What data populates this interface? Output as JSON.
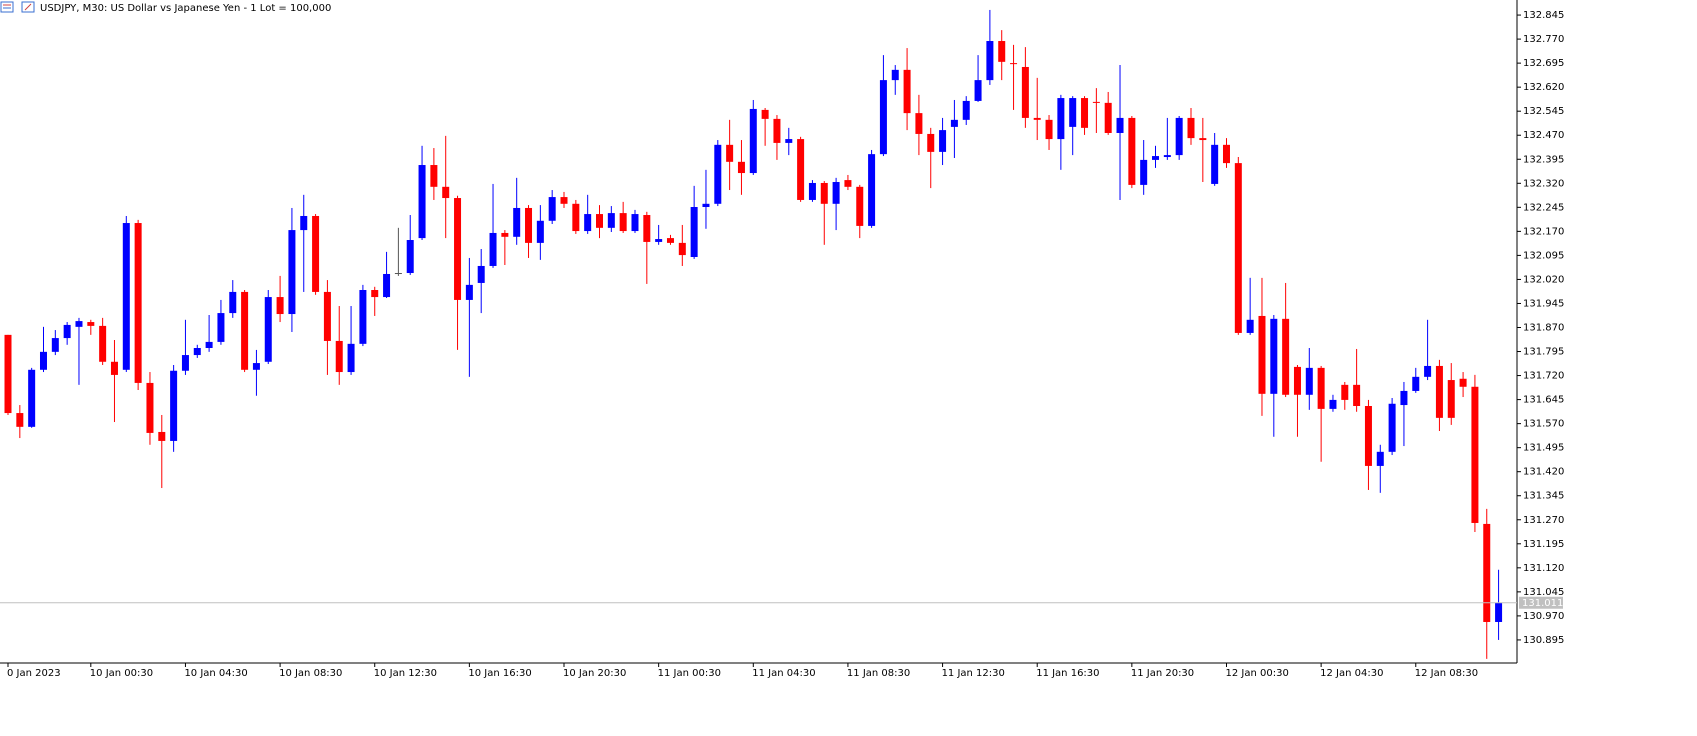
{
  "chart_data": {
    "type": "candlestick",
    "title": "USDJPY, M30:  US Dollar vs Japanese Yen - 1 Lot = 100,000",
    "categories": [
      "0 Jan 2023",
      null,
      null,
      null,
      null,
      null,
      null,
      "10 Jan 00:30",
      null,
      null,
      null,
      null,
      null,
      null,
      null,
      "10 Jan 04:30",
      null,
      null,
      null,
      null,
      null,
      null,
      null,
      "10 Jan 08:30",
      null,
      null,
      null,
      null,
      null,
      null,
      null,
      "10 Jan 12:30",
      null,
      null,
      null,
      null,
      null,
      null,
      null,
      "10 Jan 16:30",
      null,
      null,
      null,
      null,
      null,
      null,
      null,
      "10 Jan 20:30",
      null,
      null,
      null,
      null,
      null,
      null,
      null,
      "11 Jan 00:30",
      null,
      null,
      null,
      null,
      null,
      null,
      null,
      "11 Jan 04:30",
      null,
      null,
      null,
      null,
      null,
      null,
      null,
      "11 Jan 08:30",
      null,
      null,
      null,
      null,
      null,
      null,
      null,
      "11 Jan 12:30",
      null,
      null,
      null,
      null,
      null,
      null,
      null,
      "11 Jan 16:30",
      null,
      null,
      null,
      null,
      null,
      null,
      null,
      "11 Jan 20:30",
      null,
      null,
      null,
      null,
      null,
      null,
      null,
      "12 Jan 00:30",
      null,
      null,
      null,
      null,
      null,
      null,
      null,
      "12 Jan 04:30",
      null,
      null,
      null,
      null,
      null,
      null,
      null,
      "12 Jan 08:30",
      null,
      null,
      null,
      null,
      null,
      null,
      null
    ],
    "open": [
      131.847,
      131.603,
      131.56,
      131.738,
      131.794,
      131.837,
      131.872,
      131.887,
      131.875,
      131.763,
      131.738,
      132.196,
      131.697,
      131.544,
      131.516,
      131.735,
      131.784,
      131.806,
      131.825,
      131.915,
      131.981,
      131.738,
      131.763,
      131.965,
      131.912,
      132.174,
      132.218,
      131.981,
      131.828,
      131.731,
      131.819,
      131.987,
      131.965,
      132.04,
      132.04,
      132.149,
      132.377,
      132.309,
      132.274,
      131.956,
      132.009,
      132.062,
      132.165,
      132.153,
      132.243,
      132.134,
      132.203,
      132.277,
      132.256,
      132.171,
      132.224,
      132.181,
      132.227,
      132.171,
      132.221,
      132.137,
      132.149,
      132.134,
      132.09,
      132.246,
      132.256,
      132.44,
      132.387,
      132.352,
      132.549,
      132.521,
      132.446,
      132.458,
      132.268,
      132.321,
      132.256,
      132.33,
      132.309,
      132.187,
      132.411,
      132.642,
      132.674,
      132.539,
      132.474,
      132.418,
      132.496,
      132.518,
      132.577,
      132.642,
      132.764,
      132.695,
      132.683,
      132.524,
      132.518,
      132.458,
      132.496,
      132.586,
      132.574,
      132.571,
      132.477,
      132.524,
      132.315,
      132.393,
      132.402,
      132.408,
      132.524,
      132.461,
      132.318,
      132.44,
      132.383,
      131.853,
      131.906,
      131.663,
      131.897,
      131.747,
      131.66,
      131.744,
      131.616,
      131.691,
      131.691,
      131.625,
      131.438,
      131.482,
      131.628,
      131.672,
      131.716,
      131.75,
      131.706,
      131.71,
      131.685,
      131.257,
      130.951
    ],
    "high": [
      131.847,
      131.628,
      131.744,
      131.872,
      131.862,
      131.887,
      131.9,
      131.894,
      131.9,
      131.831,
      132.218,
      132.206,
      131.731,
      131.597,
      131.753,
      131.894,
      131.816,
      131.909,
      131.956,
      132.018,
      131.987,
      131.8,
      131.987,
      132.031,
      132.243,
      132.284,
      132.224,
      132.018,
      131.937,
      131.937,
      132.003,
      131.997,
      132.106,
      132.181,
      132.221,
      132.437,
      132.43,
      132.468,
      132.281,
      132.087,
      132.115,
      132.318,
      132.174,
      132.337,
      132.252,
      132.252,
      132.299,
      132.293,
      132.268,
      132.284,
      132.252,
      132.249,
      132.262,
      132.237,
      132.231,
      132.19,
      132.159,
      132.19,
      132.312,
      132.362,
      132.455,
      132.518,
      132.455,
      132.58,
      132.555,
      132.533,
      132.493,
      132.465,
      132.33,
      132.327,
      132.337,
      132.346,
      132.315,
      132.424,
      132.72,
      132.689,
      132.742,
      132.596,
      132.493,
      132.524,
      132.58,
      132.592,
      132.72,
      132.861,
      132.798,
      132.752,
      132.745,
      132.649,
      132.533,
      132.596,
      132.592,
      132.592,
      132.617,
      132.605,
      132.689,
      132.53,
      132.455,
      132.437,
      132.524,
      132.53,
      132.555,
      132.524,
      132.477,
      132.461,
      132.402,
      132.025,
      132.025,
      131.909,
      132.009,
      131.753,
      131.806,
      131.75,
      131.66,
      131.7,
      131.803,
      131.644,
      131.504,
      131.65,
      131.7,
      131.744,
      131.894,
      131.769,
      131.759,
      131.731,
      131.722,
      131.304,
      131.114
    ],
    "low": [
      131.597,
      131.525,
      131.557,
      131.731,
      131.784,
      131.816,
      131.691,
      131.847,
      131.753,
      131.575,
      131.731,
      131.675,
      131.504,
      131.369,
      131.482,
      131.722,
      131.775,
      131.794,
      131.816,
      131.9,
      131.731,
      131.657,
      131.756,
      131.887,
      131.856,
      131.981,
      131.972,
      131.722,
      131.691,
      131.722,
      131.812,
      131.906,
      131.962,
      132.031,
      132.034,
      132.143,
      132.268,
      132.149,
      131.8,
      131.716,
      131.915,
      132.056,
      132.065,
      132.128,
      132.087,
      132.081,
      132.193,
      132.243,
      132.162,
      132.162,
      132.149,
      132.168,
      132.165,
      132.165,
      132.006,
      132.128,
      132.128,
      132.062,
      132.084,
      132.178,
      132.249,
      132.299,
      132.284,
      132.346,
      132.437,
      132.393,
      132.408,
      132.262,
      132.262,
      132.128,
      132.174,
      132.299,
      132.149,
      132.181,
      132.405,
      132.596,
      132.486,
      132.408,
      132.305,
      132.377,
      132.399,
      132.502,
      132.574,
      132.627,
      132.642,
      132.549,
      132.493,
      132.455,
      132.424,
      132.362,
      132.408,
      132.471,
      132.477,
      132.471,
      132.268,
      132.305,
      132.284,
      132.368,
      132.393,
      132.393,
      132.44,
      132.324,
      132.312,
      132.368,
      131.847,
      131.847,
      131.594,
      131.529,
      131.653,
      131.529,
      131.613,
      131.451,
      131.607,
      131.613,
      131.607,
      131.363,
      131.354,
      131.472,
      131.5,
      131.666,
      131.706,
      131.547,
      131.566,
      131.653,
      131.232,
      130.836,
      130.895
    ],
    "close": [
      131.603,
      131.56,
      131.738,
      131.794,
      131.837,
      131.878,
      131.89,
      131.875,
      131.763,
      131.722,
      132.196,
      131.697,
      131.541,
      131.516,
      131.735,
      131.784,
      131.806,
      131.825,
      131.915,
      131.981,
      131.738,
      131.759,
      131.965,
      131.912,
      132.174,
      132.218,
      131.981,
      131.828,
      131.731,
      131.819,
      131.987,
      131.965,
      132.037,
      132.04,
      132.143,
      132.377,
      132.309,
      132.274,
      131.956,
      132.003,
      132.062,
      132.165,
      132.153,
      132.243,
      132.134,
      132.203,
      132.277,
      132.256,
      132.171,
      132.224,
      132.181,
      132.227,
      132.171,
      132.224,
      132.137,
      132.146,
      132.134,
      132.096,
      132.246,
      132.256,
      132.44,
      132.387,
      132.352,
      132.552,
      132.521,
      132.446,
      132.458,
      132.268,
      132.321,
      132.256,
      132.324,
      132.309,
      132.187,
      132.411,
      132.642,
      132.674,
      132.539,
      132.474,
      132.418,
      132.486,
      132.518,
      132.577,
      132.642,
      132.764,
      132.699,
      132.692,
      132.524,
      132.518,
      132.458,
      132.586,
      132.586,
      132.493,
      132.571,
      132.477,
      132.524,
      132.315,
      132.393,
      132.405,
      132.408,
      132.524,
      132.461,
      132.455,
      132.44,
      132.383,
      131.853,
      131.894,
      131.663,
      131.897,
      131.66,
      131.66,
      131.744,
      131.616,
      131.644,
      131.644,
      131.625,
      131.438,
      131.482,
      131.632,
      131.672,
      131.716,
      131.75,
      131.588,
      131.588,
      131.685,
      131.26,
      130.951,
      131.011
    ],
    "up_color": "#0000ff",
    "down_color": "#ff0000",
    "doji_color": "#555555",
    "current_price": 131.011,
    "ylim": [
      130.823,
      132.892
    ],
    "yticks": [
      132.845,
      {
        "value": 132.77,
        "label": "132.770"
      },
      132.695,
      {
        "value": 132.62,
        "label": "132.620"
      },
      132.545,
      {
        "value": 132.47,
        "label": "132.470"
      },
      132.395,
      {
        "value": 132.32,
        "label": "132.320"
      },
      132.245,
      {
        "value": 132.17,
        "label": "132.170"
      },
      132.095,
      {
        "value": 132.02,
        "label": "132.020"
      },
      131.945,
      {
        "value": 131.87,
        "label": "131.870"
      },
      131.795,
      {
        "value": 131.72,
        "label": "131.720"
      },
      131.645,
      {
        "value": 131.57,
        "label": "131.570"
      },
      131.495,
      {
        "value": 131.42,
        "label": "131.420"
      },
      131.345,
      {
        "value": 131.27,
        "label": "131.270"
      },
      131.195,
      {
        "value": 131.12,
        "label": "131.120"
      },
      131.045,
      {
        "value": 130.97,
        "label": "130.970"
      },
      130.895
    ]
  }
}
